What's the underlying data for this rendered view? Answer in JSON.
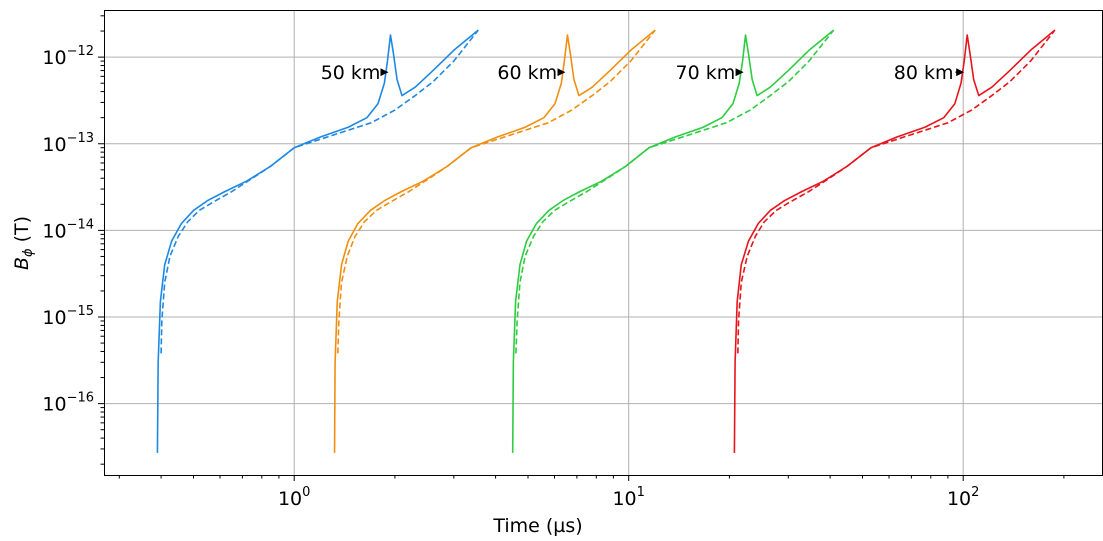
{
  "chart_data": {
    "type": "line",
    "title": "",
    "xlabel": "Time (µs)",
    "ylabel_main": "B",
    "ylabel_sub": "ϕ",
    "ylabel_unit": " (T)",
    "x_scale": "log",
    "y_scale": "log",
    "xlim": [
      0.27,
      260
    ],
    "ylim": [
      1.5e-17,
      3.5e-12
    ],
    "grid": true,
    "x_ticks": [
      {
        "value": 1,
        "base": "10",
        "exp": "0"
      },
      {
        "value": 10,
        "base": "10",
        "exp": "1"
      },
      {
        "value": 100,
        "base": "10",
        "exp": "2"
      }
    ],
    "y_ticks": [
      {
        "value": 1e-16,
        "base": "10",
        "exp": "−16"
      },
      {
        "value": 1e-15,
        "base": "10",
        "exp": "−15"
      },
      {
        "value": 1e-14,
        "base": "10",
        "exp": "−14"
      },
      {
        "value": 1e-13,
        "base": "10",
        "exp": "−13"
      },
      {
        "value": 1e-12,
        "base": "10",
        "exp": "−12"
      }
    ],
    "series": [
      {
        "color": "#1e88e5",
        "annotation": "50 km",
        "solid": [
          [
            0.39,
            2.7e-17
          ],
          [
            0.392,
            3e-16
          ],
          [
            0.398,
            1.5e-15
          ],
          [
            0.41,
            4e-15
          ],
          [
            0.43,
            7.5e-15
          ],
          [
            0.46,
            1.2e-14
          ],
          [
            0.5,
            1.7e-14
          ],
          [
            0.55,
            2.2e-14
          ],
          [
            0.62,
            2.8e-14
          ],
          [
            0.72,
            3.7e-14
          ],
          [
            0.85,
            5.5e-14
          ],
          [
            1.0,
            9e-14
          ],
          [
            1.2,
            1.2e-13
          ],
          [
            1.45,
            1.55e-13
          ],
          [
            1.65,
            2e-13
          ],
          [
            1.78,
            2.9e-13
          ],
          [
            1.86,
            5e-13
          ],
          [
            1.9,
            9e-13
          ],
          [
            1.94,
            1.8e-12
          ],
          [
            1.98,
            1.1e-12
          ],
          [
            2.03,
            5.5e-13
          ],
          [
            2.1,
            3.6e-13
          ],
          [
            2.3,
            4.5e-13
          ],
          [
            2.6,
            7e-13
          ],
          [
            3.0,
            1.2e-12
          ],
          [
            3.55,
            2.05e-12
          ]
        ],
        "dashed": [
          [
            0.4,
            3.8e-16
          ],
          [
            0.402,
            9e-16
          ],
          [
            0.41,
            2.5e-15
          ],
          [
            0.425,
            5e-15
          ],
          [
            0.45,
            8.5e-15
          ],
          [
            0.48,
            1.25e-14
          ],
          [
            0.52,
            1.7e-14
          ],
          [
            0.57,
            2.1e-14
          ],
          [
            0.65,
            2.8e-14
          ],
          [
            0.75,
            4e-14
          ],
          [
            0.85,
            5.5e-14
          ],
          [
            1.0,
            9e-14
          ],
          [
            1.3,
            1.25e-13
          ],
          [
            1.7,
            1.75e-13
          ],
          [
            2.0,
            2.45e-13
          ],
          [
            2.3,
            3.6e-13
          ],
          [
            2.6,
            5.2e-13
          ],
          [
            3.0,
            9e-13
          ],
          [
            3.55,
            2.05e-12
          ]
        ],
        "label_at": [
          1.2,
          6.7e-13
        ],
        "arrow_to": [
          1.9,
          6.7e-13
        ]
      },
      {
        "color": "#f28e0f",
        "annotation": "60 km",
        "solid": [
          [
            1.32,
            2.7e-17
          ],
          [
            1.325,
            3e-16
          ],
          [
            1.345,
            1.5e-15
          ],
          [
            1.385,
            4e-15
          ],
          [
            1.45,
            7.5e-15
          ],
          [
            1.55,
            1.2e-14
          ],
          [
            1.69,
            1.7e-14
          ],
          [
            1.86,
            2.2e-14
          ],
          [
            2.09,
            2.8e-14
          ],
          [
            2.43,
            3.7e-14
          ],
          [
            2.87,
            5.5e-14
          ],
          [
            3.38,
            9e-14
          ],
          [
            4.06,
            1.2e-13
          ],
          [
            4.9,
            1.55e-13
          ],
          [
            5.58,
            2e-13
          ],
          [
            6.02,
            2.9e-13
          ],
          [
            6.29,
            5e-13
          ],
          [
            6.42,
            9e-13
          ],
          [
            6.56,
            1.8e-12
          ],
          [
            6.69,
            1.1e-12
          ],
          [
            6.86,
            5.5e-13
          ],
          [
            7.1,
            3.6e-13
          ],
          [
            7.78,
            4.5e-13
          ],
          [
            8.79,
            7e-13
          ],
          [
            10.14,
            1.2e-12
          ],
          [
            12.0,
            2.05e-12
          ]
        ],
        "dashed": [
          [
            1.35,
            3.8e-16
          ],
          [
            1.36,
            9e-16
          ],
          [
            1.385,
            2.5e-15
          ],
          [
            1.44,
            5e-15
          ],
          [
            1.52,
            8.5e-15
          ],
          [
            1.62,
            1.25e-14
          ],
          [
            1.76,
            1.7e-14
          ],
          [
            1.93,
            2.1e-14
          ],
          [
            2.2,
            2.8e-14
          ],
          [
            2.54,
            4e-14
          ],
          [
            2.87,
            5.5e-14
          ],
          [
            3.38,
            9e-14
          ],
          [
            4.4,
            1.25e-13
          ],
          [
            5.75,
            1.75e-13
          ],
          [
            6.76,
            2.45e-13
          ],
          [
            7.78,
            3.6e-13
          ],
          [
            8.79,
            5.2e-13
          ],
          [
            10.14,
            9e-13
          ],
          [
            12.0,
            2.05e-12
          ]
        ],
        "label_at": [
          4.05,
          6.7e-13
        ],
        "arrow_to": [
          6.42,
          6.7e-13
        ]
      },
      {
        "color": "#2ecc40",
        "annotation": "70 km",
        "solid": [
          [
            4.5,
            2.7e-17
          ],
          [
            4.52,
            3e-16
          ],
          [
            4.59,
            1.5e-15
          ],
          [
            4.73,
            4e-15
          ],
          [
            4.95,
            7.5e-15
          ],
          [
            5.3,
            1.2e-14
          ],
          [
            5.77,
            1.7e-14
          ],
          [
            6.35,
            2.2e-14
          ],
          [
            7.14,
            2.8e-14
          ],
          [
            8.3,
            3.7e-14
          ],
          [
            9.8,
            5.5e-14
          ],
          [
            11.5,
            9e-14
          ],
          [
            13.8,
            1.2e-13
          ],
          [
            16.7,
            1.55e-13
          ],
          [
            19.0,
            2e-13
          ],
          [
            20.5,
            2.9e-13
          ],
          [
            21.4,
            5e-13
          ],
          [
            21.9,
            9e-13
          ],
          [
            22.35,
            1.8e-12
          ],
          [
            22.8,
            1.1e-12
          ],
          [
            23.4,
            5.5e-13
          ],
          [
            24.2,
            3.6e-13
          ],
          [
            26.5,
            4.5e-13
          ],
          [
            30.0,
            7e-13
          ],
          [
            34.6,
            1.2e-12
          ],
          [
            41.0,
            2.05e-12
          ]
        ],
        "dashed": [
          [
            4.6,
            3.8e-16
          ],
          [
            4.64,
            9e-16
          ],
          [
            4.73,
            2.5e-15
          ],
          [
            4.9,
            5e-15
          ],
          [
            5.19,
            8.5e-15
          ],
          [
            5.53,
            1.25e-14
          ],
          [
            6.0,
            1.7e-14
          ],
          [
            6.57,
            2.1e-14
          ],
          [
            7.49,
            2.8e-14
          ],
          [
            8.65,
            4e-14
          ],
          [
            9.8,
            5.5e-14
          ],
          [
            11.5,
            9e-14
          ],
          [
            15.0,
            1.25e-13
          ],
          [
            19.6,
            1.75e-13
          ],
          [
            23.1,
            2.45e-13
          ],
          [
            26.5,
            3.6e-13
          ],
          [
            30.0,
            5.2e-13
          ],
          [
            34.6,
            9e-13
          ],
          [
            41.0,
            2.05e-12
          ]
        ],
        "label_at": [
          13.8,
          6.7e-13
        ],
        "arrow_to": [
          21.9,
          6.7e-13
        ]
      },
      {
        "color": "#e8141c",
        "annotation": "80 km",
        "solid": [
          [
            20.7,
            2.7e-17
          ],
          [
            20.8,
            3e-16
          ],
          [
            21.1,
            1.5e-15
          ],
          [
            21.7,
            4e-15
          ],
          [
            22.8,
            7.5e-15
          ],
          [
            24.4,
            1.2e-14
          ],
          [
            26.5,
            1.7e-14
          ],
          [
            29.2,
            2.2e-14
          ],
          [
            32.9,
            2.8e-14
          ],
          [
            38.2,
            3.7e-14
          ],
          [
            45.0,
            5.5e-14
          ],
          [
            53.0,
            9e-14
          ],
          [
            63.5,
            1.2e-13
          ],
          [
            76.8,
            1.55e-13
          ],
          [
            87.5,
            2e-13
          ],
          [
            94.4,
            2.9e-13
          ],
          [
            98.5,
            5e-13
          ],
          [
            100.7,
            9e-13
          ],
          [
            102.8,
            1.8e-12
          ],
          [
            104.8,
            1.1e-12
          ],
          [
            107.5,
            5.5e-13
          ],
          [
            111.3,
            3.6e-13
          ],
          [
            121.8,
            4.5e-13
          ],
          [
            137.8,
            7e-13
          ],
          [
            159.0,
            1.2e-12
          ],
          [
            188.0,
            2.05e-12
          ]
        ],
        "dashed": [
          [
            21.2,
            3.8e-16
          ],
          [
            21.3,
            9e-16
          ],
          [
            21.7,
            2.5e-15
          ],
          [
            22.6,
            5e-15
          ],
          [
            23.9,
            8.5e-15
          ],
          [
            25.4,
            1.25e-14
          ],
          [
            27.6,
            1.7e-14
          ],
          [
            30.2,
            2.1e-14
          ],
          [
            34.5,
            2.8e-14
          ],
          [
            39.8,
            4e-14
          ],
          [
            45.0,
            5.5e-14
          ],
          [
            53.0,
            9e-14
          ],
          [
            68.9,
            1.25e-13
          ],
          [
            90.1,
            1.75e-13
          ],
          [
            106.0,
            2.45e-13
          ],
          [
            121.8,
            3.6e-13
          ],
          [
            137.8,
            5.2e-13
          ],
          [
            159.0,
            9e-13
          ],
          [
            188.0,
            2.05e-12
          ]
        ],
        "label_at": [
          62.0,
          6.7e-13
        ],
        "arrow_to": [
          100.0,
          6.7e-13
        ]
      }
    ]
  }
}
